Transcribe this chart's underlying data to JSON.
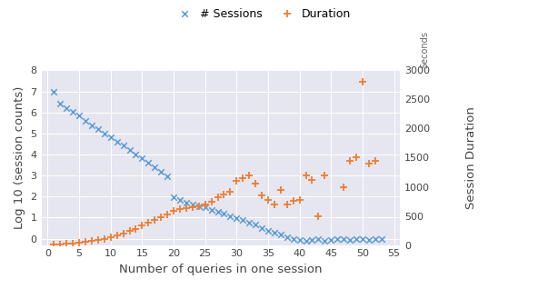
{
  "xlabel": "Number of queries in one session",
  "ylabel_left": "Log 10 (session counts)",
  "ylabel_right": "Session Duration",
  "ylabel_right2": "Seconds",
  "xlim": [
    -1,
    56
  ],
  "ylim_left": [
    -0.3,
    8
  ],
  "ylim_right": [
    0,
    3000
  ],
  "xticks": [
    0,
    5,
    10,
    15,
    20,
    25,
    30,
    35,
    40,
    45,
    50,
    55
  ],
  "yticks_left": [
    0,
    1,
    2,
    3,
    4,
    5,
    6,
    7,
    8
  ],
  "yticks_right": [
    0,
    500,
    1000,
    1500,
    2000,
    2500,
    3000
  ],
  "bg_color": "#e6e6f0",
  "sessions_color": "#5b9bd5",
  "duration_color": "#ed7d31",
  "fig_bg": "#ffffff",
  "sessions_x": [
    1,
    2,
    3,
    4,
    5,
    6,
    7,
    8,
    9,
    10,
    11,
    12,
    13,
    14,
    15,
    16,
    17,
    18,
    19,
    20,
    21,
    22,
    23,
    24,
    25,
    26,
    27,
    28,
    29,
    30,
    31,
    32,
    33,
    34,
    35,
    36,
    37,
    38,
    39,
    40,
    41,
    42,
    43,
    44,
    45,
    46,
    47,
    48,
    49,
    50,
    51,
    52,
    53
  ],
  "sessions_y": [
    7.0,
    6.4,
    6.2,
    6.05,
    5.85,
    5.62,
    5.4,
    5.2,
    5.0,
    4.82,
    4.62,
    4.42,
    4.22,
    4.02,
    3.82,
    3.6,
    3.38,
    3.18,
    2.95,
    1.95,
    1.82,
    1.72,
    1.62,
    1.55,
    1.48,
    1.38,
    1.28,
    1.18,
    1.08,
    0.98,
    0.88,
    0.78,
    0.68,
    0.52,
    0.38,
    0.28,
    0.18,
    0.08,
    0.0,
    -0.05,
    -0.1,
    -0.05,
    0.0,
    -0.1,
    -0.05,
    0.0,
    0.0,
    -0.05,
    0.0,
    0.0,
    -0.08,
    0.0,
    0.0
  ],
  "duration_x": [
    1,
    2,
    3,
    4,
    5,
    6,
    7,
    8,
    9,
    10,
    11,
    12,
    13,
    14,
    15,
    16,
    17,
    18,
    19,
    20,
    21,
    22,
    23,
    24,
    25,
    26,
    27,
    28,
    29,
    30,
    31,
    32,
    33,
    34,
    35,
    36,
    37,
    38,
    39,
    40,
    41,
    42,
    43,
    44,
    47,
    48,
    49,
    50,
    51,
    52
  ],
  "duration_y_seconds": [
    10,
    15,
    20,
    30,
    40,
    55,
    70,
    90,
    110,
    135,
    165,
    200,
    240,
    280,
    330,
    380,
    430,
    480,
    530,
    580,
    620,
    640,
    650,
    670,
    700,
    750,
    820,
    870,
    920,
    1100,
    1150,
    1200,
    1050,
    850,
    780,
    700,
    950,
    700,
    760,
    780,
    1200,
    1120,
    500,
    1200,
    1000,
    1450,
    1500,
    2800,
    1400,
    1450
  ]
}
